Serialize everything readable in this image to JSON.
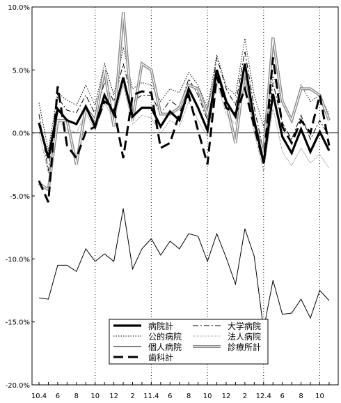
{
  "chart_data": {
    "type": "line",
    "title": "",
    "xlabel": "",
    "ylabel": "",
    "ylim": [
      -20,
      10
    ],
    "y_ticks": [
      "10.0%",
      "5.0%",
      "0.0%",
      "-5.0%",
      "-10.0%",
      "-15.0%",
      "-20.0%"
    ],
    "x_tick_labels": [
      {
        "index": 0,
        "label": "10.4"
      },
      {
        "index": 2,
        "label": "6"
      },
      {
        "index": 4,
        "label": "8"
      },
      {
        "index": 6,
        "label": "10"
      },
      {
        "index": 8,
        "label": "12"
      },
      {
        "index": 10,
        "label": "2"
      },
      {
        "index": 12,
        "label": "11.4"
      },
      {
        "index": 14,
        "label": "6"
      },
      {
        "index": 16,
        "label": "8"
      },
      {
        "index": 18,
        "label": "10"
      },
      {
        "index": 20,
        "label": "12"
      },
      {
        "index": 22,
        "label": "2"
      },
      {
        "index": 24,
        "label": "12.4"
      },
      {
        "index": 26,
        "label": "6"
      },
      {
        "index": 28,
        "label": "8"
      },
      {
        "index": 30,
        "label": "10"
      }
    ],
    "x_count": 32,
    "dotted_vlines_at": [
      6,
      12,
      18,
      24,
      30
    ],
    "legend_position": "bottom-center",
    "series": [
      {
        "name": "病院計",
        "style": "thick",
        "values": [
          0.8,
          -2.0,
          1.9,
          1.0,
          0.7,
          2.1,
          0.5,
          3.0,
          1.5,
          4.4,
          1.3,
          2.0,
          2.0,
          0.5,
          1.7,
          1.0,
          3.5,
          2.0,
          0.2,
          5.0,
          2.5,
          1.3,
          5.5,
          1.0,
          -2.4,
          3.1,
          -0.3,
          -1.6,
          0.3,
          -1.5,
          0.1,
          -1.4
        ]
      },
      {
        "name": "大学病院",
        "style": "dashdot",
        "values": [
          1.5,
          -3.0,
          2.8,
          1.8,
          1.6,
          3.0,
          1.5,
          4.0,
          2.5,
          5.5,
          2.5,
          3.0,
          3.0,
          1.5,
          2.6,
          2.0,
          4.3,
          3.0,
          1.0,
          6.0,
          3.5,
          2.2,
          6.5,
          2.0,
          -1.5,
          4.0,
          0.8,
          -0.5,
          1.4,
          -0.5,
          1.0,
          -0.3
        ]
      },
      {
        "name": "公的病院",
        "style": "dotted",
        "values": [
          2.4,
          -1.4,
          3.2,
          2.6,
          2.2,
          3.8,
          2.2,
          5.5,
          3.0,
          6.8,
          3.5,
          4.0,
          3.8,
          2.5,
          3.5,
          3.2,
          4.8,
          3.8,
          2.0,
          6.2,
          3.7,
          3.0,
          7.5,
          3.0,
          0.5,
          4.5,
          2.5,
          1.0,
          3.8,
          2.5,
          3.0,
          1.5
        ]
      },
      {
        "name": "法人病院",
        "style": "thinline",
        "values": [
          0.1,
          -3.2,
          1.0,
          0.3,
          0.0,
          1.6,
          0.2,
          2.4,
          1.0,
          3.8,
          0.7,
          1.4,
          1.2,
          0.0,
          1.0,
          0.5,
          2.5,
          1.0,
          -0.3,
          4.0,
          1.5,
          0.7,
          4.0,
          0.0,
          -3.0,
          2.0,
          -1.5,
          -2.6,
          -1.2,
          -2.4,
          -1.7,
          -2.8
        ]
      },
      {
        "name": "個人病院",
        "style": "thin",
        "values": [
          -13.1,
          -13.2,
          -10.5,
          -10.5,
          -11.0,
          -9.2,
          -10.2,
          -9.6,
          -10.2,
          -6.0,
          -10.8,
          -9.2,
          -8.4,
          -9.7,
          -8.6,
          -9.2,
          -8.0,
          -8.2,
          -10.2,
          -8.0,
          -9.9,
          -12.0,
          -7.6,
          -9.8,
          -15.6,
          -11.7,
          -14.4,
          -14.3,
          -13.2,
          -14.7,
          -12.5,
          -13.3
        ]
      },
      {
        "name": "診療所計",
        "style": "double",
        "values": [
          -4.0,
          -4.5,
          1.0,
          1.0,
          -2.5,
          2.0,
          1.0,
          5.0,
          0.5,
          9.6,
          1.0,
          5.5,
          5.0,
          1.5,
          1.5,
          2.0,
          3.8,
          3.5,
          1.5,
          5.0,
          2.5,
          -0.8,
          5.0,
          0.8,
          -1.6,
          7.6,
          2.5,
          1.0,
          3.5,
          3.5,
          3.0,
          1.0
        ]
      },
      {
        "name": "歯科計",
        "style": "dashed",
        "values": [
          -3.8,
          -5.5,
          3.7,
          -1.0,
          -2.0,
          0.1,
          0.5,
          2.5,
          2.0,
          -2.0,
          3.0,
          3.3,
          3.2,
          -1.2,
          -0.8,
          1.5,
          3.0,
          0.2,
          -2.5,
          4.5,
          2.0,
          1.5,
          3.5,
          0.5,
          -2.4,
          6.0,
          0.5,
          -0.8,
          1.0,
          0.0,
          3.0,
          -1.0
        ]
      }
    ]
  }
}
